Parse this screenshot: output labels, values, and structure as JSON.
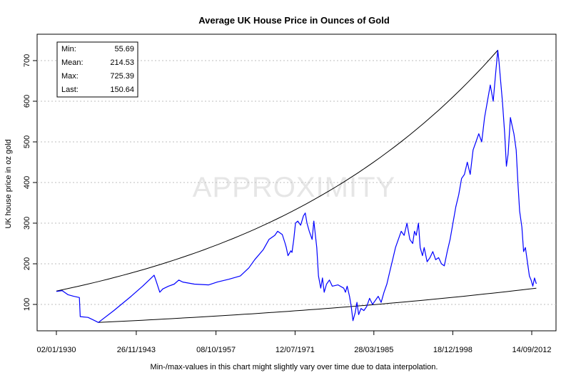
{
  "chart_data": {
    "type": "line",
    "title": "Average UK House Price in Ounces of Gold",
    "xlabel": "",
    "ylabel": "UK house price in oz gold",
    "xlim": [
      1930.0,
      2013.0
    ],
    "ylim": [
      48,
      740
    ],
    "x_ticks": [
      {
        "x": 1930.0,
        "label": "02/01/1930"
      },
      {
        "x": 1943.9,
        "label": "26/11/1943"
      },
      {
        "x": 1957.77,
        "label": "08/10/1957"
      },
      {
        "x": 1971.53,
        "label": "12/07/1971"
      },
      {
        "x": 1985.24,
        "label": "28/03/1985"
      },
      {
        "x": 1998.97,
        "label": "18/12/1998"
      },
      {
        "x": 2012.71,
        "label": "14/09/2012"
      }
    ],
    "y_ticks": [
      100,
      200,
      300,
      400,
      500,
      600,
      700
    ],
    "grid": "horizontal-dotted",
    "stats": [
      {
        "label": "Min:",
        "value": "55.69"
      },
      {
        "label": "Mean:",
        "value": "214.53"
      },
      {
        "label": "Max:",
        "value": "725.39"
      },
      {
        "label": "Last:",
        "value": "150.64"
      }
    ],
    "series": [
      {
        "name": "House price in oz gold",
        "color": "#0000ff",
        "points": [
          [
            1930.0,
            132
          ],
          [
            1931.0,
            134
          ],
          [
            1932.0,
            124
          ],
          [
            1933.0,
            120
          ],
          [
            1934.0,
            117
          ],
          [
            1934.15,
            70
          ],
          [
            1935.5,
            68
          ],
          [
            1936.7,
            60
          ],
          [
            1937.3,
            55.7
          ],
          [
            1940.0,
            85
          ],
          [
            1943.0,
            120
          ],
          [
            1945.0,
            145
          ],
          [
            1946.5,
            165
          ],
          [
            1947.0,
            172
          ],
          [
            1947.3,
            160
          ],
          [
            1948.0,
            130
          ],
          [
            1948.5,
            138
          ],
          [
            1949.5,
            145
          ],
          [
            1950.5,
            150
          ],
          [
            1951.3,
            160
          ],
          [
            1952.0,
            155
          ],
          [
            1954.0,
            150
          ],
          [
            1956.5,
            148
          ],
          [
            1958.0,
            155
          ],
          [
            1960.0,
            162
          ],
          [
            1962.0,
            170
          ],
          [
            1963.5,
            190
          ],
          [
            1964.5,
            210
          ],
          [
            1966.0,
            235
          ],
          [
            1967.0,
            260
          ],
          [
            1968.0,
            270
          ],
          [
            1968.5,
            280
          ],
          [
            1969.3,
            272
          ],
          [
            1969.8,
            250
          ],
          [
            1970.0,
            240
          ],
          [
            1970.3,
            220
          ],
          [
            1970.8,
            232
          ],
          [
            1971.0,
            228
          ],
          [
            1971.3,
            260
          ],
          [
            1971.6,
            300
          ],
          [
            1972.0,
            305
          ],
          [
            1972.5,
            295
          ],
          [
            1973.0,
            318
          ],
          [
            1973.3,
            325
          ],
          [
            1973.6,
            300
          ],
          [
            1974.0,
            280
          ],
          [
            1974.5,
            260
          ],
          [
            1974.8,
            305
          ],
          [
            1975.3,
            240
          ],
          [
            1975.6,
            170
          ],
          [
            1976.0,
            140
          ],
          [
            1976.3,
            165
          ],
          [
            1976.6,
            130
          ],
          [
            1977.0,
            150
          ],
          [
            1977.5,
            160
          ],
          [
            1978.0,
            145
          ],
          [
            1979.0,
            148
          ],
          [
            1980.0,
            140
          ],
          [
            1980.3,
            130
          ],
          [
            1980.6,
            145
          ],
          [
            1981.0,
            120
          ],
          [
            1981.3,
            95
          ],
          [
            1981.6,
            60
          ],
          [
            1982.0,
            80
          ],
          [
            1982.3,
            105
          ],
          [
            1982.6,
            75
          ],
          [
            1983.0,
            90
          ],
          [
            1983.5,
            85
          ],
          [
            1984.0,
            95
          ],
          [
            1984.5,
            115
          ],
          [
            1985.0,
            100
          ],
          [
            1985.5,
            110
          ],
          [
            1986.0,
            120
          ],
          [
            1986.5,
            105
          ],
          [
            1987.0,
            130
          ],
          [
            1987.5,
            150
          ],
          [
            1988.0,
            180
          ],
          [
            1988.5,
            210
          ],
          [
            1989.0,
            240
          ],
          [
            1989.5,
            260
          ],
          [
            1990.0,
            280
          ],
          [
            1990.5,
            270
          ],
          [
            1991.0,
            300
          ],
          [
            1991.5,
            260
          ],
          [
            1992.0,
            250
          ],
          [
            1992.3,
            280
          ],
          [
            1992.6,
            270
          ],
          [
            1993.0,
            300
          ],
          [
            1993.3,
            240
          ],
          [
            1993.7,
            220
          ],
          [
            1994.0,
            240
          ],
          [
            1994.5,
            205
          ],
          [
            1995.0,
            215
          ],
          [
            1995.5,
            230
          ],
          [
            1996.0,
            210
          ],
          [
            1996.5,
            215
          ],
          [
            1997.0,
            200
          ],
          [
            1997.5,
            195
          ],
          [
            1998.0,
            230
          ],
          [
            1998.5,
            260
          ],
          [
            1999.0,
            300
          ],
          [
            1999.5,
            340
          ],
          [
            2000.0,
            370
          ],
          [
            2000.5,
            410
          ],
          [
            2001.0,
            420
          ],
          [
            2001.5,
            450
          ],
          [
            2002.0,
            420
          ],
          [
            2002.5,
            480
          ],
          [
            2003.0,
            500
          ],
          [
            2003.5,
            520
          ],
          [
            2004.0,
            500
          ],
          [
            2004.5,
            560
          ],
          [
            2005.0,
            600
          ],
          [
            2005.5,
            640
          ],
          [
            2006.0,
            600
          ],
          [
            2006.5,
            680
          ],
          [
            2006.8,
            725.4
          ],
          [
            2007.0,
            700
          ],
          [
            2007.3,
            650
          ],
          [
            2007.6,
            600
          ],
          [
            2008.0,
            520
          ],
          [
            2008.3,
            440
          ],
          [
            2008.6,
            470
          ],
          [
            2009.0,
            560
          ],
          [
            2009.3,
            540
          ],
          [
            2009.6,
            520
          ],
          [
            2010.0,
            480
          ],
          [
            2010.3,
            400
          ],
          [
            2010.6,
            330
          ],
          [
            2011.0,
            290
          ],
          [
            2011.3,
            230
          ],
          [
            2011.6,
            240
          ],
          [
            2012.0,
            200
          ],
          [
            2012.3,
            170
          ],
          [
            2012.6,
            160
          ],
          [
            2012.9,
            145
          ],
          [
            2013.2,
            165
          ],
          [
            2013.5,
            150.64
          ]
        ]
      }
    ],
    "envelope": {
      "upper": {
        "from": [
          1930.0,
          133
        ],
        "to": [
          2006.8,
          725.4
        ]
      },
      "lower": {
        "from": [
          1937.3,
          55.7
        ],
        "to": [
          2013.5,
          140
        ]
      }
    },
    "watermark": "APPROXIMITY",
    "note": "Min-/max-values in this chart might slightly vary over time due to data interpolation."
  }
}
